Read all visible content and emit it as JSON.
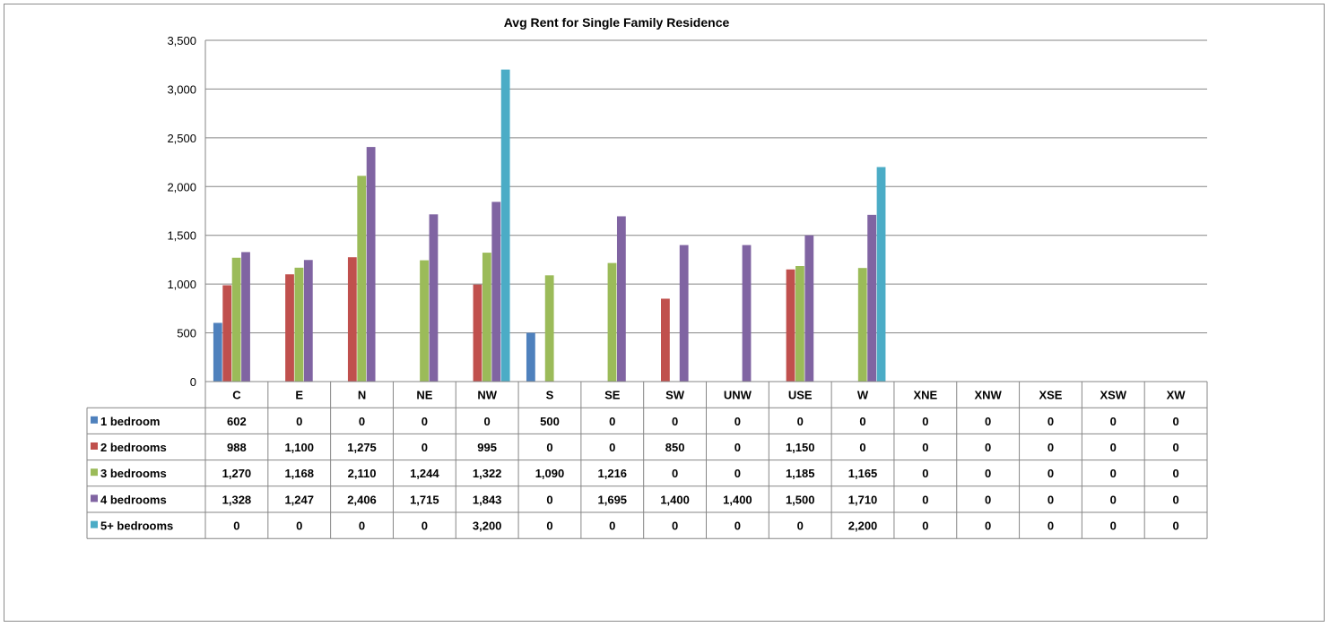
{
  "chart_data": {
    "type": "bar",
    "title": "Avg Rent for Single Family Residence",
    "xlabel": "",
    "ylabel": "",
    "ylim": [
      0,
      3500
    ],
    "yticks": [
      0,
      500,
      1000,
      1500,
      2000,
      2500,
      3000,
      3500
    ],
    "ytick_labels": [
      "0",
      "500",
      "1,000",
      "1,500",
      "2,000",
      "2,500",
      "3,000",
      "3,500"
    ],
    "grid": true,
    "legend": "data-table",
    "categories": [
      "C",
      "E",
      "N",
      "NE",
      "NW",
      "S",
      "SE",
      "SW",
      "UNW",
      "USE",
      "W",
      "XNE",
      "XNW",
      "XSE",
      "XSW",
      "XW"
    ],
    "series": [
      {
        "name": "1 bedroom",
        "color": "#4F81BD",
        "values": [
          602,
          0,
          0,
          0,
          0,
          500,
          0,
          0,
          0,
          0,
          0,
          0,
          0,
          0,
          0,
          0
        ],
        "labels": [
          "602",
          "0",
          "0",
          "0",
          "0",
          "500",
          "0",
          "0",
          "0",
          "0",
          "0",
          "0",
          "0",
          "0",
          "0",
          "0"
        ]
      },
      {
        "name": "2 bedrooms",
        "color": "#C0504D",
        "values": [
          988,
          1100,
          1275,
          0,
          995,
          0,
          0,
          850,
          0,
          1150,
          0,
          0,
          0,
          0,
          0,
          0
        ],
        "labels": [
          "988",
          "1,100",
          "1,275",
          "0",
          "995",
          "0",
          "0",
          "850",
          "0",
          "1,150",
          "0",
          "0",
          "0",
          "0",
          "0",
          "0"
        ]
      },
      {
        "name": "3 bedrooms",
        "color": "#9BBB59",
        "values": [
          1270,
          1168,
          2110,
          1244,
          1322,
          1090,
          1216,
          0,
          0,
          1185,
          1165,
          0,
          0,
          0,
          0,
          0
        ],
        "labels": [
          "1,270",
          "1,168",
          "2,110",
          "1,244",
          "1,322",
          "1,090",
          "1,216",
          "0",
          "0",
          "1,185",
          "1,165",
          "0",
          "0",
          "0",
          "0",
          "0"
        ]
      },
      {
        "name": "4 bedrooms",
        "color": "#8064A2",
        "values": [
          1328,
          1247,
          2406,
          1715,
          1843,
          0,
          1695,
          1400,
          1400,
          1500,
          1710,
          0,
          0,
          0,
          0,
          0
        ],
        "labels": [
          "1,328",
          "1,247",
          "2,406",
          "1,715",
          "1,843",
          "0",
          "1,695",
          "1,400",
          "1,400",
          "1,500",
          "1,710",
          "0",
          "0",
          "0",
          "0",
          "0"
        ]
      },
      {
        "name": "5+ bedrooms",
        "color": "#4BACC6",
        "values": [
          0,
          0,
          0,
          0,
          3200,
          0,
          0,
          0,
          0,
          0,
          2200,
          0,
          0,
          0,
          0,
          0
        ],
        "labels": [
          "0",
          "0",
          "0",
          "0",
          "3,200",
          "0",
          "0",
          "0",
          "0",
          "0",
          "2,200",
          "0",
          "0",
          "0",
          "0",
          "0"
        ]
      }
    ]
  }
}
